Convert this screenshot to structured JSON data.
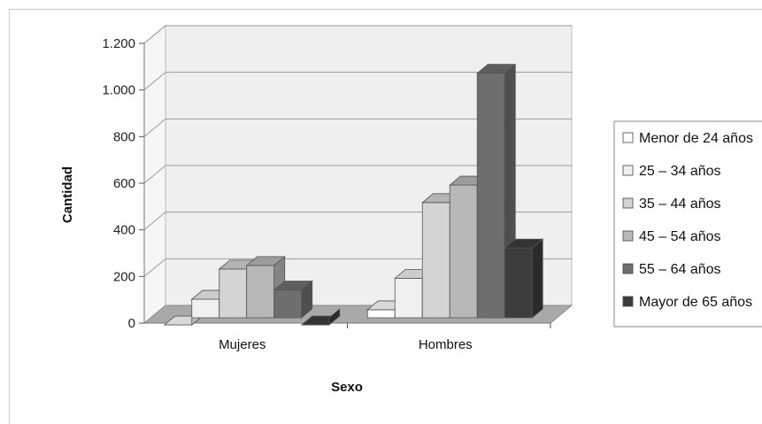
{
  "chart_data": {
    "type": "bar",
    "categories": [
      "Mujeres",
      "Hombres"
    ],
    "series": [
      {
        "name": "Menor de 24 años",
        "values": [
          15,
          80
        ],
        "color": "#ffffff"
      },
      {
        "name": "25 – 34 años",
        "values": [
          125,
          215
        ],
        "color": "#f0f0f0"
      },
      {
        "name": "35 – 44 años",
        "values": [
          255,
          540
        ],
        "color": "#d4d4d4"
      },
      {
        "name": "45 – 54 años",
        "values": [
          270,
          615
        ],
        "color": "#b8b8b8"
      },
      {
        "name": "55 – 64 años",
        "values": [
          165,
          1095
        ],
        "color": "#6e6e6e"
      },
      {
        "name": "Mayor de 65 años",
        "values": [
          15,
          345
        ],
        "color": "#3c3c3c"
      }
    ],
    "title": "",
    "xlabel": "Sexo",
    "ylabel": "Cantidad",
    "ylim": [
      0,
      1200
    ],
    "yticks": [
      0,
      200,
      400,
      600,
      800,
      1000,
      1200
    ],
    "ytick_labels": [
      "0",
      "200",
      "400",
      "600",
      "800",
      "1.000",
      "1.200"
    ],
    "grid": true,
    "legend": "right",
    "style": "3d-clustered-column"
  }
}
